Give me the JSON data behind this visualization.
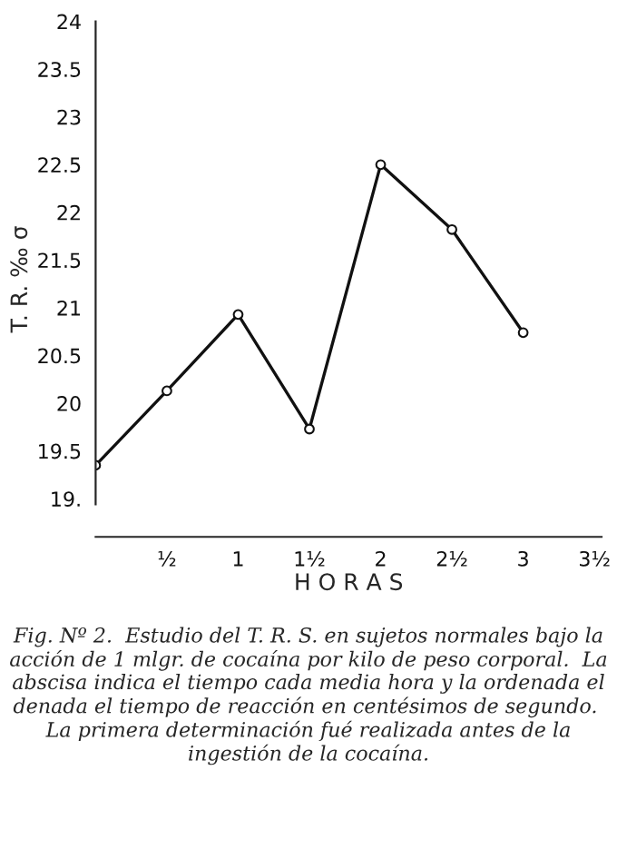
{
  "chart_data": {
    "type": "line",
    "x": [
      0,
      0.5,
      1,
      1.5,
      2,
      2.5,
      3
    ],
    "series": [
      {
        "color": "#111111",
        "values": [
          19.35,
          20.13,
          20.93,
          19.73,
          22.5,
          21.82,
          20.74
        ]
      }
    ],
    "xlabel": "H O R A S",
    "ylabel": "T. R. ‰ σ",
    "xlim": [
      0,
      3.55
    ],
    "ylim": [
      18.6,
      24
    ],
    "xticks": [
      {
        "value": 0.5,
        "label": "½"
      },
      {
        "value": 1,
        "label": "1"
      },
      {
        "value": 1.5,
        "label": "1½"
      },
      {
        "value": 2,
        "label": "2"
      },
      {
        "value": 2.5,
        "label": "2½"
      },
      {
        "value": 3,
        "label": "3"
      },
      {
        "value": 3.5,
        "label": "3½"
      }
    ],
    "yticks": [
      {
        "value": 19,
        "label": "19."
      },
      19.5,
      20,
      20.5,
      21,
      21.5,
      22,
      22.5,
      23,
      23.5,
      24
    ],
    "marker": "circle",
    "line_style": "solid",
    "grid": false,
    "annotations": [
      "Fig. Nº 2.  Estudio del T. R. S. en sujetos normales bajo la acción de 1 mlgr. de cocaína por kilo de peso corporal.  La abscisa indica el tiempo cada media hora y la ordenada el denada el tiempo de reacción en centésimos de segundo.  La primera determinación fué realizada antes de la ingestión de la cocaína."
    ]
  }
}
